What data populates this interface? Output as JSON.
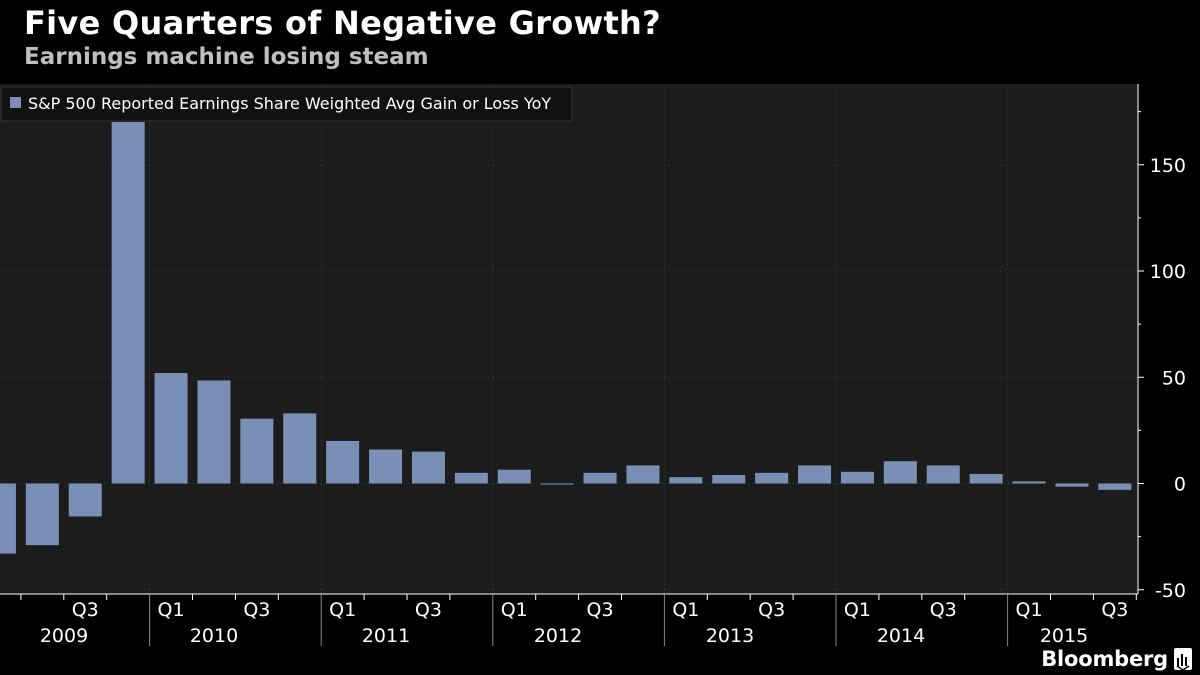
{
  "header": {
    "title": "Five Quarters of Negative Growth?",
    "subtitle": "Earnings machine losing steam"
  },
  "footer": {
    "brand": "Bloomberg",
    "brand_icon": "bloomberg-terminal-icon"
  },
  "colors": {
    "background": "#000000",
    "plot_background": "#1c1c1c",
    "bar": "#7a8fb5",
    "grid": "#3a3a3a",
    "text": "#ffffff"
  },
  "chart_data": {
    "type": "bar",
    "legend": {
      "position": "top-left",
      "entries": [
        "S&P 500 Reported Earnings Share Weighted Avg Gain or Loss YoY"
      ]
    },
    "x": [
      "2009 Q1",
      "2009 Q2",
      "2009 Q3",
      "2009 Q4",
      "2010 Q1",
      "2010 Q2",
      "2010 Q3",
      "2010 Q4",
      "2011 Q1",
      "2011 Q2",
      "2011 Q3",
      "2011 Q4",
      "2012 Q1",
      "2012 Q2",
      "2012 Q3",
      "2012 Q4",
      "2013 Q1",
      "2013 Q2",
      "2013 Q3",
      "2013 Q4",
      "2014 Q1",
      "2014 Q2",
      "2014 Q3",
      "2014 Q4",
      "2015 Q1",
      "2015 Q2",
      "2015 Q3"
    ],
    "series": [
      {
        "name": "S&P 500 Reported Earnings Share Weighted Avg Gain or Loss YoY",
        "values": [
          -33,
          -29,
          -15.5,
          177,
          52,
          48.5,
          30.5,
          33,
          20,
          16,
          15,
          5,
          6.5,
          -0.5,
          5,
          8.5,
          3,
          4,
          5,
          8.5,
          5.5,
          10.5,
          8.5,
          4.5,
          1,
          -1.5,
          -3
        ]
      }
    ],
    "category_ticks": [
      "",
      "",
      "Q3",
      "",
      "Q1",
      "",
      "Q3",
      "",
      "Q1",
      "",
      "Q3",
      "",
      "Q1",
      "",
      "Q3",
      "",
      "Q1",
      "",
      "Q3",
      "",
      "Q1",
      "",
      "Q3",
      "",
      "Q1",
      "",
      "Q3"
    ],
    "year_labels": [
      "2009",
      "2010",
      "2011",
      "2012",
      "2013",
      "2014",
      "2015"
    ],
    "y_ticks": [
      150,
      100,
      50,
      0,
      -50
    ],
    "ylim": [
      -52,
      188
    ],
    "y_axis_side": "right",
    "grid": true
  }
}
